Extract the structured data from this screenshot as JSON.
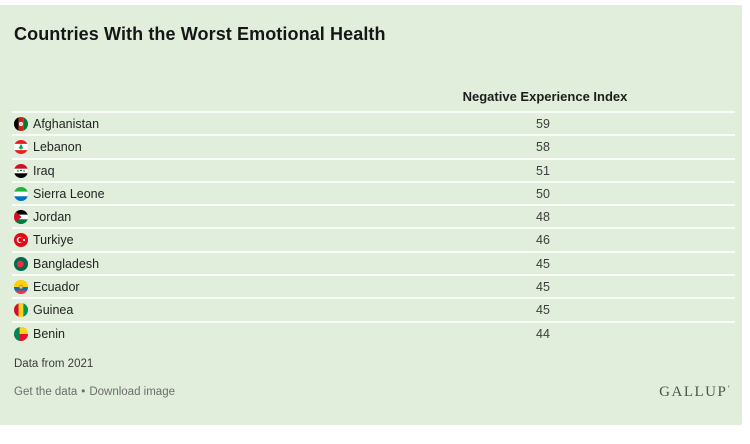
{
  "colors": {
    "panel_background": "#e0eedb",
    "row_divider": "#f9fcf7",
    "title_text": "#161616",
    "body_text": "#242424",
    "muted_text": "#6d6d6d",
    "logo_text": "#4e544e"
  },
  "header": {
    "title": "Countries With the Worst Emotional Health"
  },
  "table": {
    "value_column_header": "Negative Experience Index",
    "rows": [
      {
        "country": "Afghanistan",
        "value": "59",
        "flag": "flag-afghanistan"
      },
      {
        "country": "Lebanon",
        "value": "58",
        "flag": "flag-lebanon"
      },
      {
        "country": "Iraq",
        "value": "51",
        "flag": "flag-iraq"
      },
      {
        "country": "Sierra Leone",
        "value": "50",
        "flag": "flag-sierra-leone"
      },
      {
        "country": "Jordan",
        "value": "48",
        "flag": "flag-jordan"
      },
      {
        "country": "Turkiye",
        "value": "46",
        "flag": "flag-turkiye"
      },
      {
        "country": "Bangladesh",
        "value": "45",
        "flag": "flag-bangladesh"
      },
      {
        "country": "Ecuador",
        "value": "45",
        "flag": "flag-ecuador"
      },
      {
        "country": "Guinea",
        "value": "45",
        "flag": "flag-guinea"
      },
      {
        "country": "Benin",
        "value": "44",
        "flag": "flag-benin"
      }
    ]
  },
  "footer": {
    "note": "Data from 2021",
    "links": [
      {
        "label": "Get the data"
      },
      {
        "label": "Download image"
      }
    ],
    "links_separator": "•",
    "logo": "GALLUP",
    "logo_mark": "’"
  },
  "chart_data": {
    "type": "table",
    "title": "Countries With the Worst Emotional Health",
    "value_label": "Negative Experience Index",
    "categories": [
      "Afghanistan",
      "Lebanon",
      "Iraq",
      "Sierra Leone",
      "Jordan",
      "Turkiye",
      "Bangladesh",
      "Ecuador",
      "Guinea",
      "Benin"
    ],
    "values": [
      59,
      58,
      51,
      50,
      48,
      46,
      45,
      45,
      45,
      44
    ],
    "note": "Data from 2021",
    "source_logo": "GALLUP"
  }
}
